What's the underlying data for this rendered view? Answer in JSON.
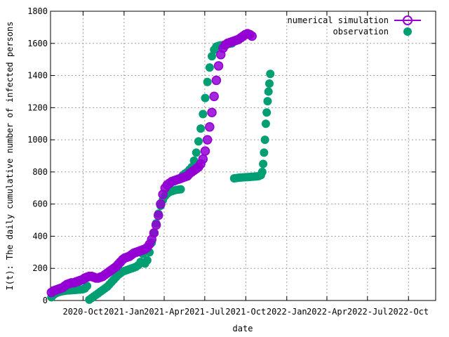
{
  "chart_data": {
    "type": "scatter",
    "title": "",
    "xlabel": "date",
    "ylabel": "I(t): The daily cumulative number of infected persons",
    "x_tick_labels": [
      "2020-Oct",
      "2021-Jan",
      "2021-Apr",
      "2021-Jul",
      "2021-Oct",
      "2022-Jan",
      "2022-Apr",
      "2022-Jul",
      "2022-Oct"
    ],
    "x_ticks": [
      "2020-10-01",
      "2021-01-01",
      "2021-04-01",
      "2021-07-01",
      "2021-10-01",
      "2022-01-01",
      "2022-04-01",
      "2022-07-01",
      "2022-10-01"
    ],
    "xlim": [
      "2020-07-20",
      "2022-12-01"
    ],
    "ylim": [
      0,
      1800
    ],
    "y_ticks": [
      0,
      200,
      400,
      600,
      800,
      1000,
      1200,
      1400,
      1600,
      1800
    ],
    "grid": true,
    "legend_position": "top-right",
    "series": [
      {
        "name": "numerical simulation",
        "color": "#9400d3",
        "marker": "circle",
        "points": [
          [
            "2020-07-22",
            50
          ],
          [
            "2020-07-27",
            60
          ],
          [
            "2020-08-01",
            65
          ],
          [
            "2020-08-06",
            70
          ],
          [
            "2020-08-11",
            75
          ],
          [
            "2020-08-16",
            80
          ],
          [
            "2020-08-21",
            90
          ],
          [
            "2020-08-26",
            100
          ],
          [
            "2020-08-31",
            105
          ],
          [
            "2020-09-05",
            110
          ],
          [
            "2020-09-10",
            110
          ],
          [
            "2020-09-15",
            115
          ],
          [
            "2020-09-20",
            120
          ],
          [
            "2020-09-25",
            125
          ],
          [
            "2020-09-30",
            130
          ],
          [
            "2020-10-05",
            140
          ],
          [
            "2020-10-10",
            145
          ],
          [
            "2020-10-15",
            150
          ],
          [
            "2020-10-20",
            150
          ],
          [
            "2020-10-25",
            145
          ],
          [
            "2020-10-30",
            140
          ],
          [
            "2020-11-04",
            140
          ],
          [
            "2020-11-09",
            145
          ],
          [
            "2020-11-14",
            150
          ],
          [
            "2020-11-19",
            160
          ],
          [
            "2020-11-24",
            170
          ],
          [
            "2020-11-29",
            180
          ],
          [
            "2020-12-04",
            190
          ],
          [
            "2020-12-09",
            200
          ],
          [
            "2020-12-14",
            210
          ],
          [
            "2020-12-19",
            225
          ],
          [
            "2020-12-24",
            240
          ],
          [
            "2020-12-29",
            255
          ],
          [
            "2021-01-03",
            265
          ],
          [
            "2021-01-08",
            270
          ],
          [
            "2021-01-13",
            275
          ],
          [
            "2021-01-18",
            285
          ],
          [
            "2021-01-23",
            295
          ],
          [
            "2021-01-28",
            300
          ],
          [
            "2021-02-02",
            305
          ],
          [
            "2021-02-07",
            310
          ],
          [
            "2021-02-12",
            315
          ],
          [
            "2021-02-17",
            320
          ],
          [
            "2021-02-22",
            330
          ],
          [
            "2021-02-27",
            350
          ],
          [
            "2021-03-04",
            380
          ],
          [
            "2021-03-09",
            420
          ],
          [
            "2021-03-14",
            470
          ],
          [
            "2021-03-19",
            530
          ],
          [
            "2021-03-24",
            600
          ],
          [
            "2021-03-29",
            660
          ],
          [
            "2021-04-03",
            700
          ],
          [
            "2021-04-08",
            720
          ],
          [
            "2021-04-13",
            730
          ],
          [
            "2021-04-18",
            740
          ],
          [
            "2021-04-23",
            745
          ],
          [
            "2021-04-28",
            750
          ],
          [
            "2021-05-03",
            755
          ],
          [
            "2021-05-08",
            760
          ],
          [
            "2021-05-13",
            765
          ],
          [
            "2021-05-18",
            770
          ],
          [
            "2021-05-23",
            775
          ],
          [
            "2021-05-28",
            790
          ],
          [
            "2021-06-02",
            800
          ],
          [
            "2021-06-07",
            810
          ],
          [
            "2021-06-12",
            820
          ],
          [
            "2021-06-17",
            830
          ],
          [
            "2021-06-22",
            850
          ],
          [
            "2021-06-27",
            880
          ],
          [
            "2021-07-02",
            930
          ],
          [
            "2021-07-07",
            1000
          ],
          [
            "2021-07-12",
            1080
          ],
          [
            "2021-07-17",
            1170
          ],
          [
            "2021-07-22",
            1270
          ],
          [
            "2021-07-27",
            1370
          ],
          [
            "2021-08-01",
            1460
          ],
          [
            "2021-08-06",
            1530
          ],
          [
            "2021-08-11",
            1570
          ],
          [
            "2021-08-16",
            1590
          ],
          [
            "2021-08-21",
            1600
          ],
          [
            "2021-08-26",
            1605
          ],
          [
            "2021-08-31",
            1610
          ],
          [
            "2021-09-05",
            1615
          ],
          [
            "2021-09-10",
            1620
          ],
          [
            "2021-09-15",
            1625
          ],
          [
            "2021-09-20",
            1635
          ],
          [
            "2021-09-25",
            1645
          ],
          [
            "2021-09-30",
            1655
          ],
          [
            "2021-10-05",
            1660
          ],
          [
            "2021-10-10",
            1655
          ],
          [
            "2021-10-15",
            1645
          ]
        ]
      },
      {
        "name": "observation",
        "color": "#009e73",
        "marker": "filled-circle",
        "points": [
          [
            "2020-07-22",
            20
          ],
          [
            "2020-07-27",
            35
          ],
          [
            "2020-08-01",
            45
          ],
          [
            "2020-08-06",
            50
          ],
          [
            "2020-08-11",
            55
          ],
          [
            "2020-08-16",
            58
          ],
          [
            "2020-08-21",
            60
          ],
          [
            "2020-08-26",
            62
          ],
          [
            "2020-08-31",
            63
          ],
          [
            "2020-09-05",
            64
          ],
          [
            "2020-09-10",
            65
          ],
          [
            "2020-09-15",
            66
          ],
          [
            "2020-09-20",
            67
          ],
          [
            "2020-09-25",
            68
          ],
          [
            "2020-09-30",
            70
          ],
          [
            "2020-10-05",
            75
          ],
          [
            "2020-10-10",
            90
          ],
          [
            "2020-10-15",
            5
          ],
          [
            "2020-10-20",
            15
          ],
          [
            "2020-10-25",
            25
          ],
          [
            "2020-10-30",
            35
          ],
          [
            "2020-11-04",
            45
          ],
          [
            "2020-11-09",
            55
          ],
          [
            "2020-11-14",
            65
          ],
          [
            "2020-11-19",
            75
          ],
          [
            "2020-11-24",
            85
          ],
          [
            "2020-11-29",
            100
          ],
          [
            "2020-12-04",
            115
          ],
          [
            "2020-12-09",
            130
          ],
          [
            "2020-12-14",
            145
          ],
          [
            "2020-12-19",
            160
          ],
          [
            "2020-12-24",
            170
          ],
          [
            "2020-12-29",
            180
          ],
          [
            "2021-01-03",
            185
          ],
          [
            "2021-01-08",
            190
          ],
          [
            "2021-01-13",
            195
          ],
          [
            "2021-01-18",
            200
          ],
          [
            "2021-01-23",
            205
          ],
          [
            "2021-01-28",
            210
          ],
          [
            "2021-02-02",
            220
          ],
          [
            "2021-02-07",
            240
          ],
          [
            "2021-02-12",
            290
          ],
          [
            "2021-02-17",
            230
          ],
          [
            "2021-02-22",
            250
          ],
          [
            "2021-02-27",
            300
          ],
          [
            "2021-03-04",
            360
          ],
          [
            "2021-03-09",
            420
          ],
          [
            "2021-03-14",
            480
          ],
          [
            "2021-03-19",
            540
          ],
          [
            "2021-03-24",
            590
          ],
          [
            "2021-03-29",
            625
          ],
          [
            "2021-04-03",
            650
          ],
          [
            "2021-04-08",
            665
          ],
          [
            "2021-04-13",
            675
          ],
          [
            "2021-04-18",
            680
          ],
          [
            "2021-04-23",
            685
          ],
          [
            "2021-04-28",
            688
          ],
          [
            "2021-05-03",
            690
          ],
          [
            "2021-05-08",
            692
          ],
          [
            "2021-05-13",
            780
          ],
          [
            "2021-05-18",
            790
          ],
          [
            "2021-05-23",
            800
          ],
          [
            "2021-05-28",
            815
          ],
          [
            "2021-06-02",
            830
          ],
          [
            "2021-06-07",
            870
          ],
          [
            "2021-06-12",
            920
          ],
          [
            "2021-06-17",
            990
          ],
          [
            "2021-06-22",
            1070
          ],
          [
            "2021-06-27",
            1160
          ],
          [
            "2021-07-02",
            1260
          ],
          [
            "2021-07-07",
            1360
          ],
          [
            "2021-07-12",
            1450
          ],
          [
            "2021-07-17",
            1520
          ],
          [
            "2021-07-22",
            1560
          ],
          [
            "2021-07-27",
            1580
          ],
          [
            "2021-08-01",
            1585
          ],
          [
            "2021-08-06",
            1588
          ],
          [
            "2021-08-11",
            1590
          ],
          [
            "2021-08-16",
            1592
          ],
          [
            "2021-08-21",
            1595
          ],
          [
            "2021-08-26",
            1598
          ],
          [
            "2021-08-31",
            1600
          ],
          [
            "2021-09-05",
            760
          ],
          [
            "2021-09-10",
            762
          ],
          [
            "2021-09-15",
            764
          ],
          [
            "2021-09-20",
            765
          ],
          [
            "2021-09-25",
            766
          ],
          [
            "2021-09-30",
            767
          ],
          [
            "2021-10-05",
            768
          ],
          [
            "2021-10-10",
            769
          ],
          [
            "2021-10-15",
            770
          ],
          [
            "2021-10-20",
            771
          ],
          [
            "2021-10-25",
            772
          ],
          [
            "2021-10-30",
            774
          ],
          [
            "2021-11-04",
            780
          ],
          [
            "2021-11-07",
            800
          ],
          [
            "2021-11-09",
            850
          ],
          [
            "2021-11-11",
            920
          ],
          [
            "2021-11-13",
            1000
          ],
          [
            "2021-11-15",
            1100
          ],
          [
            "2021-11-17",
            1170
          ],
          [
            "2021-11-19",
            1240
          ],
          [
            "2021-11-21",
            1300
          ],
          [
            "2021-11-23",
            1350
          ],
          [
            "2021-11-25",
            1410
          ]
        ]
      }
    ]
  }
}
